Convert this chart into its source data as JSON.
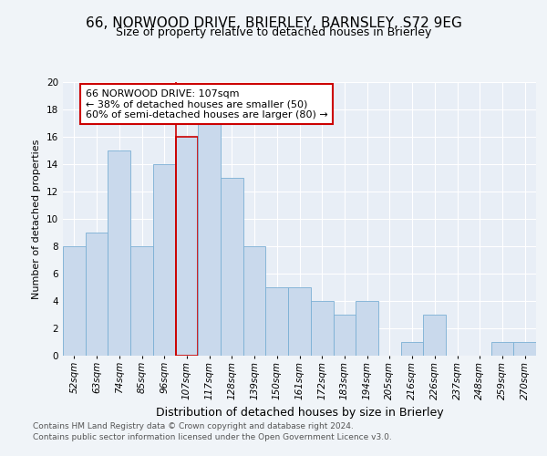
{
  "title_line1": "66, NORWOOD DRIVE, BRIERLEY, BARNSLEY, S72 9EG",
  "title_line2": "Size of property relative to detached houses in Brierley",
  "xlabel": "Distribution of detached houses by size in Brierley",
  "ylabel": "Number of detached properties",
  "categories": [
    "52sqm",
    "63sqm",
    "74sqm",
    "85sqm",
    "96sqm",
    "107sqm",
    "117sqm",
    "128sqm",
    "139sqm",
    "150sqm",
    "161sqm",
    "172sqm",
    "183sqm",
    "194sqm",
    "205sqm",
    "216sqm",
    "226sqm",
    "237sqm",
    "248sqm",
    "259sqm",
    "270sqm"
  ],
  "values": [
    8,
    9,
    15,
    8,
    14,
    16,
    17,
    13,
    8,
    5,
    5,
    4,
    3,
    4,
    0,
    1,
    3,
    0,
    0,
    1,
    1
  ],
  "bar_color": "#c9d9ec",
  "bar_edge_color": "#7aafd4",
  "highlight_bar_index": 5,
  "highlight_edge_color": "#cc0000",
  "annotation_line1": "66 NORWOOD DRIVE: 107sqm",
  "annotation_line2": "← 38% of detached houses are smaller (50)",
  "annotation_line3": "60% of semi-detached houses are larger (80) →",
  "annotation_box_edge_color": "#cc0000",
  "footer_line1": "Contains HM Land Registry data © Crown copyright and database right 2024.",
  "footer_line2": "Contains public sector information licensed under the Open Government Licence v3.0.",
  "ylim": [
    0,
    20
  ],
  "background_color": "#f0f4f8",
  "plot_background_color": "#e8eef6",
  "grid_color": "#ffffff",
  "title1_fontsize": 11,
  "title2_fontsize": 9,
  "ylabel_fontsize": 8,
  "xlabel_fontsize": 9,
  "tick_fontsize": 7.5,
  "footer_fontsize": 6.5,
  "annotation_fontsize": 8
}
